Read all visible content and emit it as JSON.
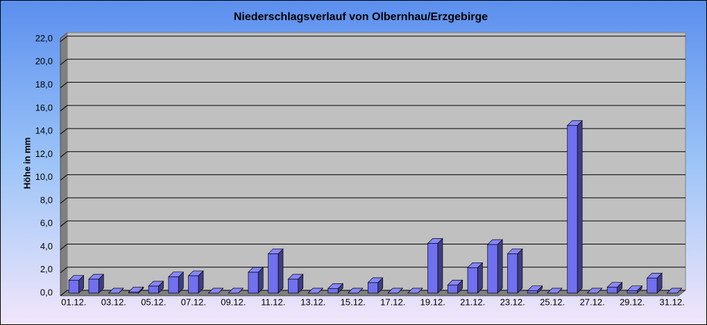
{
  "chart_data": {
    "type": "bar",
    "title": "Niederschlagsverlauf von Olbernhau/Erzgebirge",
    "y_label": "Höhe in mm",
    "categories": [
      "01.12.",
      null,
      "03.12.",
      null,
      "05.12.",
      null,
      "07.12.",
      null,
      "09.12.",
      null,
      "11.12.",
      null,
      "13.12.",
      null,
      "15.12.",
      null,
      "17.12.",
      null,
      "19.12.",
      null,
      "21.12.",
      null,
      "23.12.",
      null,
      "25.12.",
      null,
      "27.12.",
      null,
      "29.12.",
      null,
      "31.12."
    ],
    "values": [
      1.1,
      1.2,
      0,
      0.1,
      0.6,
      1.4,
      1.5,
      0,
      0,
      1.8,
      3.4,
      1.2,
      0,
      0.4,
      0,
      0.9,
      0,
      0,
      4.3,
      0.7,
      2.2,
      4.2,
      3.4,
      0.2,
      0,
      14.5,
      0,
      0.5,
      0.2,
      1.3,
      0
    ],
    "color": "#7070f0",
    "ylim": [
      0,
      22
    ],
    "yticks": [
      {
        "value": 0,
        "label": "0,0"
      },
      {
        "value": 2,
        "label": "2,0"
      },
      {
        "value": 4,
        "label": "4,0"
      },
      {
        "value": 6,
        "label": "6,0"
      },
      {
        "value": 8,
        "label": "8,0"
      },
      {
        "value": 10,
        "label": "10,0"
      },
      {
        "value": 12,
        "label": "12,0"
      },
      {
        "value": 14,
        "label": "14,0"
      },
      {
        "value": 16,
        "label": "16,0"
      },
      {
        "value": 18,
        "label": "18,0"
      },
      {
        "value": 20,
        "label": "20,0"
      },
      {
        "value": 22,
        "label": "22,0"
      }
    ],
    "grid": true
  }
}
